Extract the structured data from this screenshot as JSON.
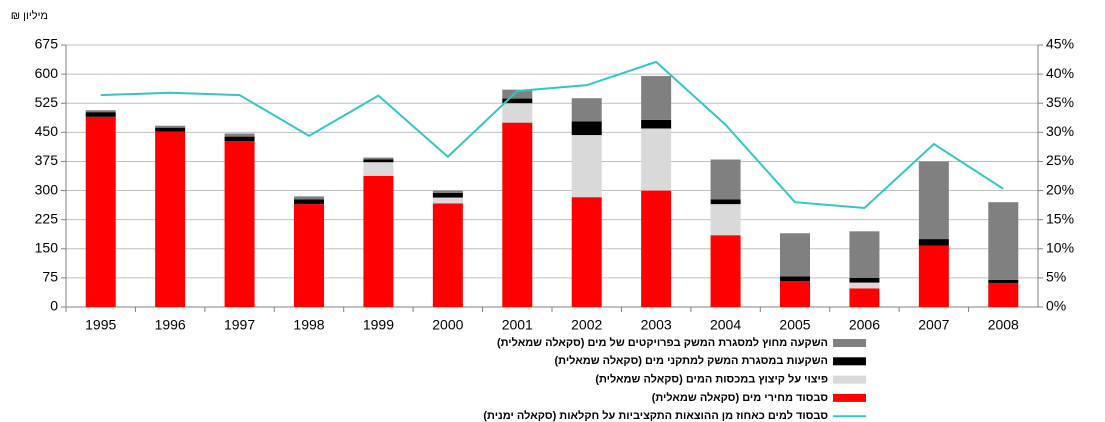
{
  "chart_data": {
    "type": "bar",
    "stacked": true,
    "y_unit_label": "מיליון ₪",
    "categories": [
      "1995",
      "1996",
      "1997",
      "1998",
      "1999",
      "2000",
      "2001",
      "2002",
      "2003",
      "2004",
      "2005",
      "2006",
      "2007",
      "2008"
    ],
    "series": [
      {
        "name": "סבסוד מחירי מים (סקאלה שמאלית)",
        "color": "#ff0000",
        "values": [
          490,
          452,
          427,
          265,
          338,
          267,
          475,
          283,
          300,
          185,
          67,
          48,
          158,
          62
        ]
      },
      {
        "name": "פיצוי על קיצוץ במכסות המים (סקאלה שמאלית)",
        "color": "#d9d9d9",
        "values": [
          0,
          0,
          0,
          0,
          35,
          15,
          50,
          160,
          160,
          80,
          0,
          15,
          0,
          0
        ]
      },
      {
        "name": "השקעות במסגרת המשק למתקני מים (סקאלה שמאלית)",
        "color": "#000000",
        "values": [
          12,
          10,
          12,
          12,
          7,
          12,
          12,
          35,
          22,
          12,
          12,
          12,
          17,
          8
        ]
      },
      {
        "name": "השקעה מחוץ למסגרת המשק בפרויקטים של מים (סקאלה שמאלית)",
        "color": "#808080",
        "values": [
          5,
          5,
          8,
          8,
          5,
          6,
          23,
          60,
          113,
          103,
          111,
          120,
          200,
          200
        ]
      },
      {
        "name": "סבסוד למים כאחוז מן ההוצאות התקציביות על חקלאות (סקאלה ימנית)",
        "color": "#33c6c6",
        "type": "line",
        "axis": "y2",
        "values": [
          36.4,
          36.8,
          36.4,
          29.4,
          36.3,
          25.8,
          37.1,
          38.1,
          42.1,
          31.3,
          18.0,
          17.0,
          28.0,
          20.3
        ]
      }
    ],
    "ylim": [
      0,
      675
    ],
    "yticks": [
      0,
      75,
      150,
      225,
      300,
      375,
      450,
      525,
      600,
      675
    ],
    "y2lim": [
      0,
      45
    ],
    "y2ticks": [
      {
        "value": 0,
        "label": "0%"
      },
      {
        "value": 5,
        "label": "5%"
      },
      {
        "value": 10,
        "label": "10%"
      },
      {
        "value": 15,
        "label": "15%"
      },
      {
        "value": 20,
        "label": "20%"
      },
      {
        "value": 25,
        "label": "25%"
      },
      {
        "value": 30,
        "label": "30%"
      },
      {
        "value": 35,
        "label": "35%"
      },
      {
        "value": 40,
        "label": "40%"
      },
      {
        "value": 45,
        "label": "45%"
      }
    ],
    "grid": true
  }
}
